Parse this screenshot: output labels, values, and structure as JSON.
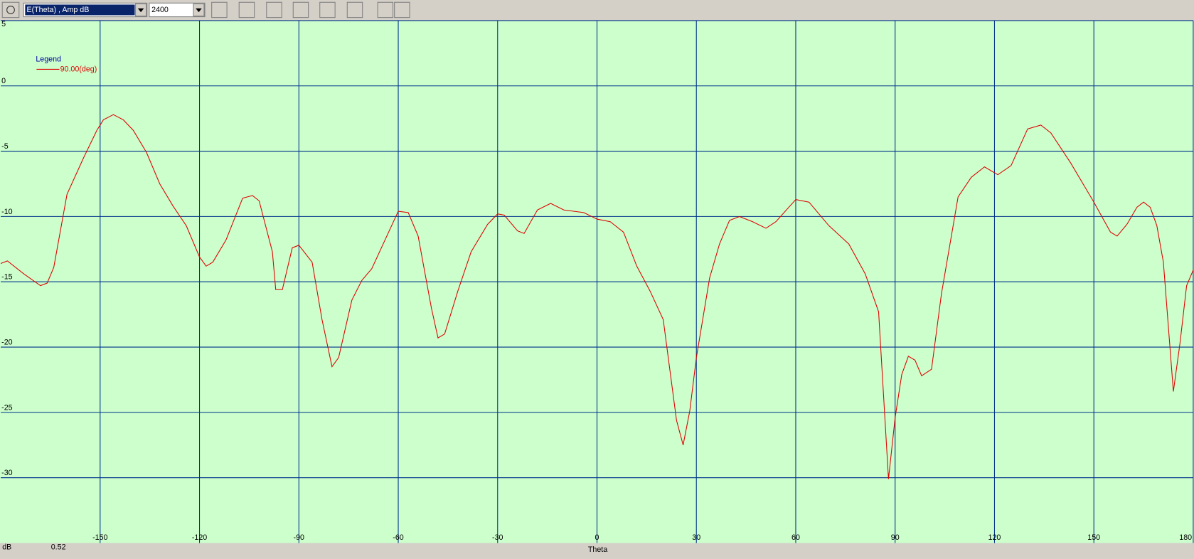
{
  "toolbar": {
    "quantity": "E(Theta) , Amp dB",
    "frequency": "2400"
  },
  "status": {
    "value": "0.52"
  },
  "chart_data": {
    "type": "line",
    "xlabel": "Theta",
    "ylabel": "dB",
    "legend_title": "Legend",
    "x": [
      -180,
      -178,
      -173,
      -168,
      -166,
      -164,
      -160,
      -155,
      -151,
      -149,
      -146,
      -143,
      -140,
      -136,
      -132,
      -128,
      -124,
      -120,
      -118,
      -116,
      -112,
      -107,
      -104,
      -102,
      -98,
      -97,
      -95,
      -92,
      -90,
      -86,
      -83,
      -80,
      -78,
      -74,
      -71,
      -68,
      -64,
      -60,
      -57,
      -54,
      -50,
      -48,
      -46,
      -42,
      -38,
      -33,
      -30,
      -28,
      -24,
      -22,
      -18,
      -14,
      -10,
      -4,
      0,
      4,
      8,
      12,
      16,
      20,
      24,
      26,
      28,
      30,
      34,
      37,
      40,
      43,
      47,
      51,
      54,
      60,
      64,
      70,
      76,
      81,
      85,
      88,
      90,
      92,
      94,
      96,
      98,
      101,
      104,
      109,
      113,
      117,
      121,
      125,
      130,
      134,
      137,
      143,
      150,
      155,
      157,
      160,
      163,
      165,
      167,
      169,
      171,
      174,
      176,
      178,
      180
    ],
    "series": [
      {
        "name": "90.00(deg)",
        "color": "#e00000",
        "values": [
          -13.6,
          -13.4,
          -14.4,
          -15.3,
          -15.1,
          -13.9,
          -8.3,
          -5.5,
          -3.4,
          -2.6,
          -2.2,
          -2.6,
          -3.4,
          -5.1,
          -7.5,
          -9.2,
          -10.7,
          -13.1,
          -13.8,
          -13.5,
          -11.8,
          -8.6,
          -8.4,
          -8.8,
          -12.7,
          -15.6,
          -15.6,
          -12.4,
          -12.2,
          -13.5,
          -17.9,
          -21.5,
          -20.8,
          -16.4,
          -14.9,
          -14.0,
          -11.8,
          -9.6,
          -9.7,
          -11.5,
          -17.0,
          -19.3,
          -19.0,
          -15.7,
          -12.7,
          -10.6,
          -9.8,
          -9.9,
          -11.1,
          -11.3,
          -9.5,
          -9.0,
          -9.5,
          -9.7,
          -10.2,
          -10.4,
          -11.2,
          -13.8,
          -15.7,
          -17.9,
          -25.6,
          -27.5,
          -24.9,
          -20.8,
          -14.7,
          -12.1,
          -10.3,
          -10.0,
          -10.4,
          -10.9,
          -10.4,
          -8.7,
          -8.9,
          -10.7,
          -12.1,
          -14.4,
          -17.3,
          -30.1,
          -25.4,
          -22.1,
          -20.7,
          -21.0,
          -22.2,
          -21.7,
          -15.9,
          -8.5,
          -7.0,
          -6.2,
          -6.8,
          -6.1,
          -3.3,
          -3.0,
          -3.6,
          -5.9,
          -8.9,
          -11.2,
          -11.5,
          -10.6,
          -9.3,
          -8.9,
          -9.3,
          -10.7,
          -13.5,
          -23.4,
          -19.7,
          -15.3,
          -14.1
        ]
      }
    ],
    "xlim": [
      -180,
      180
    ],
    "xticks": [
      -150,
      -120,
      -90,
      -60,
      -30,
      0,
      30,
      60,
      90,
      120,
      150,
      180
    ],
    "ylim": [
      -35,
      5
    ],
    "yticks": [
      5,
      0,
      -5,
      -10,
      -15,
      -20,
      -25,
      -30
    ],
    "grid": true,
    "grid_color": "#00308a",
    "plot_background": "#ccffcc",
    "legend": "upper left"
  }
}
